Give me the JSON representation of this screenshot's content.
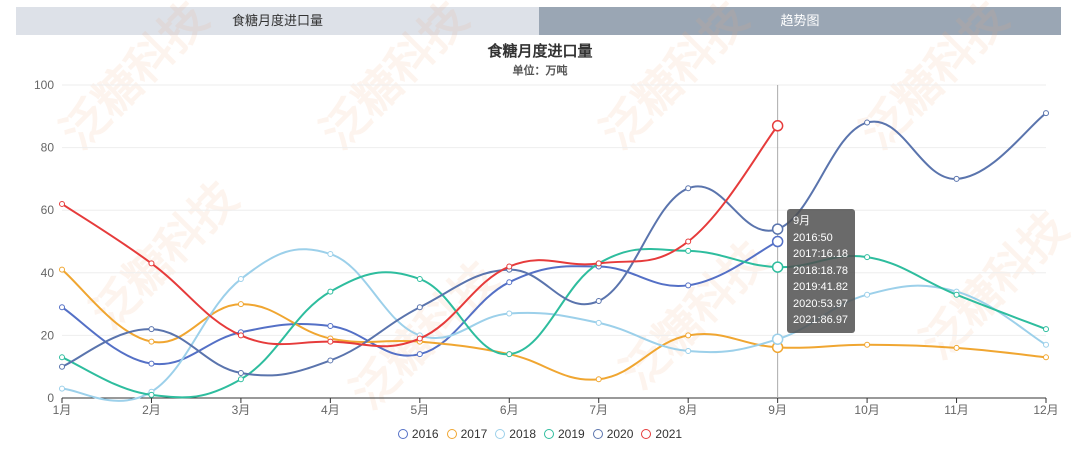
{
  "tabs": [
    {
      "label": "食糖月度进口量"
    },
    {
      "label": "趋势图"
    }
  ],
  "watermark": "泛糖科技",
  "chart_data": {
    "type": "line",
    "title": "食糖月度进口量",
    "subtitle": "单位：万吨",
    "categories": [
      "1月",
      "2月",
      "3月",
      "4月",
      "5月",
      "6月",
      "7月",
      "8月",
      "9月",
      "10月",
      "11月",
      "12月"
    ],
    "ylim": [
      0,
      100
    ],
    "yticks": [
      0,
      20,
      40,
      60,
      80,
      100
    ],
    "series": [
      {
        "name": "2016",
        "color": "#5470c6",
        "values": [
          29,
          11,
          21,
          23,
          14,
          37,
          42,
          36,
          50,
          null,
          null,
          null
        ]
      },
      {
        "name": "2017",
        "color": "#f0a631",
        "values": [
          41,
          18,
          30,
          19,
          18,
          14,
          6,
          20,
          16.18,
          17,
          16,
          13
        ]
      },
      {
        "name": "2018",
        "color": "#9cd0ea",
        "values": [
          3,
          2,
          38,
          46,
          20,
          27,
          24,
          15,
          18.78,
          33,
          34,
          17
        ]
      },
      {
        "name": "2019",
        "color": "#2ebd9e",
        "values": [
          13,
          1,
          6,
          34,
          38,
          14,
          43,
          47,
          41.82,
          45,
          33,
          22
        ]
      },
      {
        "name": "2020",
        "color": "#5a74ad",
        "values": [
          10,
          22,
          8,
          12,
          29,
          41,
          31,
          67,
          53.97,
          88,
          70,
          91
        ]
      },
      {
        "name": "2021",
        "color": "#e63b3b",
        "values": [
          62,
          43,
          20,
          18,
          19,
          42,
          43,
          50,
          86.97,
          null,
          null,
          null
        ]
      }
    ]
  },
  "tooltip": {
    "title": "9月",
    "lines": [
      "2016:50",
      "2017:16.18",
      "2018:18.78",
      "2019:41.82",
      "2020:53.97",
      "2021:86.97"
    ]
  }
}
